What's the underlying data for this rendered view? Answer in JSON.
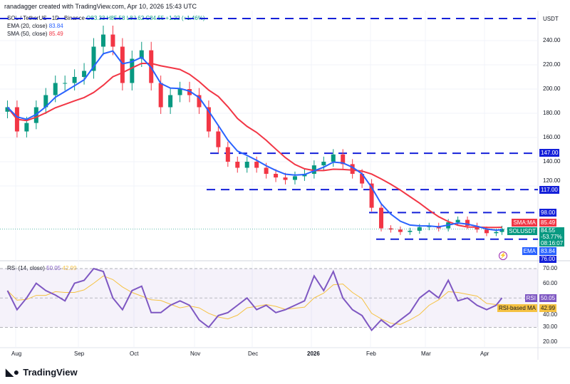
{
  "header": {
    "credit": "ranadagger created with TradingView.com, Apr 10, 2026 15:43 UTC"
  },
  "symbol": {
    "name": "SOL / TetherUS · 1D · Binance",
    "open": "O83.33",
    "high": "H85.58",
    "low": "L82.62",
    "close": "C84.55",
    "change": "+1.22 (+1.46%)"
  },
  "indicators": {
    "ema_label": "EMA (20, close)",
    "ema_value": "83.84",
    "sma_label": "SMA (50, close)",
    "sma_value": "85.49",
    "rsi_label": "RSI (14, close)",
    "rsi_value": "50.05",
    "rsi_ma_value": "42.99"
  },
  "colors": {
    "up": "#089981",
    "down": "#f23645",
    "ema": "#2962ff",
    "sma": "#f23645",
    "levels": "#1420d9",
    "rsi": "#7e57c2",
    "rsi_ma": "#f5c243"
  },
  "price_axis": {
    "unit": "USDT",
    "ticks": [
      "240.00",
      "220.00",
      "200.00",
      "180.00",
      "160.00",
      "140.00",
      "120.00"
    ]
  },
  "badges": {
    "l147": "147.00",
    "l117": "117.00",
    "l98": "98.00",
    "sma_tag": "SMA:MA",
    "sma": "85.49",
    "sym_tag": "SOLUSDT",
    "price": "84.55",
    "pct": "-53.77%",
    "countdown": "08:16:07",
    "ema_tag": "EMA",
    "ema": "83.84",
    "l76": "76.00"
  },
  "rsi_axis": {
    "ticks": [
      "70.00",
      "60.00",
      "40.00",
      "30.00",
      "20.00"
    ],
    "rsi_tag": "RSI",
    "rsi_ma_tag": "RSI-based MA"
  },
  "time_axis": [
    "Aug",
    "Sep",
    "Oct",
    "Nov",
    "Dec",
    "2026",
    "Feb",
    "Mar",
    "Apr"
  ],
  "logo": "TradingView",
  "chart_data": {
    "type": "candlestick",
    "levels": [
      147,
      117,
      98,
      76
    ],
    "dates": [
      "2025-07-26",
      "2025-07-31",
      "2025-08-05",
      "2025-08-10",
      "2025-08-15",
      "2025-08-20",
      "2025-08-25",
      "2025-08-30",
      "2025-09-04",
      "2025-09-09",
      "2025-09-14",
      "2025-09-19",
      "2025-09-24",
      "2025-09-29",
      "2025-10-04",
      "2025-10-09",
      "2025-10-14",
      "2025-10-19",
      "2025-10-24",
      "2025-10-29",
      "2025-11-03",
      "2025-11-08",
      "2025-11-13",
      "2025-11-18",
      "2025-11-23",
      "2025-11-28",
      "2025-12-03",
      "2025-12-08",
      "2025-12-13",
      "2025-12-18",
      "2025-12-23",
      "2025-12-28",
      "2026-01-02",
      "2026-01-07",
      "2026-01-12",
      "2026-01-17",
      "2026-01-22",
      "2026-01-27",
      "2026-02-01",
      "2026-02-06",
      "2026-02-11",
      "2026-02-16",
      "2026-02-21",
      "2026-02-26",
      "2026-03-03",
      "2026-03-08",
      "2026-03-13",
      "2026-03-18",
      "2026-03-23",
      "2026-03-28",
      "2026-04-02",
      "2026-04-07",
      "2026-04-10"
    ],
    "close": [
      185,
      165,
      172,
      185,
      195,
      205,
      205,
      210,
      215,
      235,
      245,
      235,
      205,
      225,
      232,
      205,
      185,
      195,
      200,
      195,
      185,
      165,
      152,
      140,
      135,
      140,
      135,
      130,
      127,
      125,
      128,
      130,
      137,
      140,
      146,
      138,
      130,
      122,
      102,
      85,
      84,
      82,
      83,
      86,
      87,
      85,
      90,
      92,
      87,
      84,
      81,
      82,
      84.55
    ],
    "rsi": [
      55,
      42,
      50,
      60,
      55,
      52,
      48,
      60,
      62,
      70,
      68,
      50,
      42,
      55,
      58,
      40,
      40,
      45,
      48,
      45,
      35,
      30,
      38,
      40,
      45,
      50,
      42,
      45,
      40,
      42,
      45,
      48,
      65,
      55,
      68,
      50,
      42,
      38,
      28,
      35,
      30,
      35,
      40,
      50,
      55,
      50,
      62,
      48,
      50,
      45,
      42,
      45,
      50.05
    ]
  }
}
